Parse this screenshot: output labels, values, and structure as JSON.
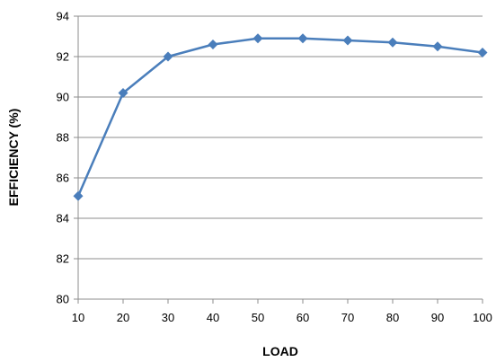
{
  "chart_data": {
    "type": "line",
    "title": "",
    "xlabel": "LOAD",
    "ylabel": "EFFICIENCY (%)",
    "x": [
      10,
      20,
      30,
      40,
      50,
      60,
      70,
      80,
      90,
      100
    ],
    "series": [
      {
        "values": [
          85.1,
          90.2,
          92.0,
          92.6,
          92.9,
          92.9,
          92.8,
          92.7,
          92.5,
          92.2
        ],
        "color": "#4a7ebb"
      }
    ],
    "xlim": [
      10,
      100
    ],
    "ylim": [
      80,
      94
    ],
    "x_ticks": [
      "10",
      "20",
      "30",
      "40",
      "50",
      "60",
      "70",
      "80",
      "90",
      "100"
    ],
    "y_ticks": [
      "80",
      "82",
      "84",
      "86",
      "88",
      "90",
      "92",
      "94"
    ],
    "grid": true,
    "marker": "diamond"
  }
}
